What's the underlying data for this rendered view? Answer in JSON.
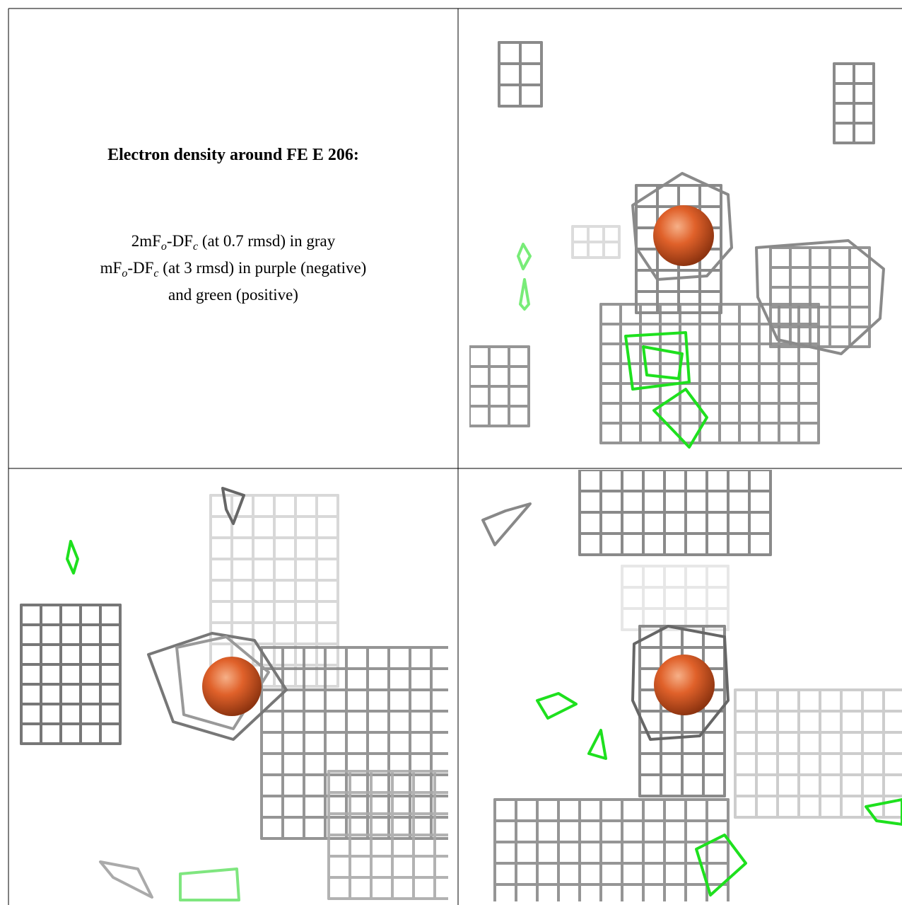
{
  "caption": {
    "title": "Electron density around FE E 206:",
    "lines": [
      [
        "2mF",
        "o",
        "-DF",
        "c",
        " (at 0.7 rmsd) in gray"
      ],
      [
        "mF",
        "o",
        "-DF",
        "c",
        " (at 3 rmsd) in purple (negative)"
      ],
      [
        "and green (positive)"
      ]
    ]
  }
}
